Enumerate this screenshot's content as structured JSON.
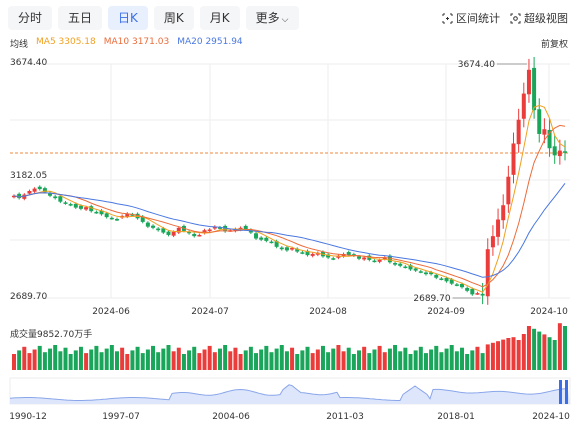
{
  "tabs": [
    "分时",
    "五日",
    "日K",
    "周K",
    "月K",
    "更多"
  ],
  "active_tab": 2,
  "tools": {
    "range_stats": "区间统计",
    "super_view": "超级视图"
  },
  "legend": {
    "label": "均线",
    "ma5": "MA5 3305.18",
    "ma10": "MA10 3171.03",
    "ma20": "MA20 2951.94"
  },
  "restore_label": "前复权",
  "price_axis": {
    "high": "3674.40",
    "mid": "3182.05",
    "low": "2689.70"
  },
  "annotations": {
    "max": "3674.40",
    "min": "2689.70"
  },
  "month_labels": [
    "2024-06",
    "2024-07",
    "2024-08",
    "2024-09",
    "2024-10"
  ],
  "volume_title": "成交量9852.70万手",
  "overview_labels": [
    "1990-12",
    "1997-07",
    "2004-06",
    "2011-03",
    "2018-01",
    "2024-10"
  ],
  "colors": {
    "up": "#eb3c3c",
    "down": "#1aa65a",
    "ma5": "#f0a020",
    "ma10": "#ec6b3a",
    "ma20": "#4a78e0",
    "ref": "#f08a3c"
  },
  "chart_data": {
    "type": "candlestick",
    "x_range": [
      "2024-05-16",
      "2024-10-10"
    ],
    "ylim": [
      2689.7,
      3674.4
    ],
    "reference_line": 3300,
    "ma": {
      "MA5": 3305.18,
      "MA10": 3171.03,
      "MA20": 2951.94
    },
    "max": 3674.4,
    "min": 2689.7,
    "volume_unit": "万手",
    "series_close": [
      3120,
      3110,
      3125,
      3140,
      3150,
      3148,
      3135,
      3120,
      3110,
      3095,
      3088,
      3082,
      3070,
      3065,
      3072,
      3055,
      3050,
      3042,
      3030,
      3025,
      3020,
      3035,
      3045,
      3040,
      3025,
      3010,
      2990,
      2985,
      2975,
      2965,
      2955,
      2968,
      2985,
      2972,
      2962,
      2950,
      2955,
      2975,
      2978,
      2990,
      2985,
      2970,
      2975,
      2980,
      2985,
      2980,
      2965,
      2940,
      2935,
      2930,
      2925,
      2905,
      2895,
      2890,
      2900,
      2885,
      2880,
      2870,
      2875,
      2880,
      2865,
      2860,
      2855,
      2868,
      2875,
      2870,
      2868,
      2855,
      2860,
      2850,
      2845,
      2850,
      2860,
      2840,
      2830,
      2825,
      2820,
      2810,
      2805,
      2800,
      2790,
      2790,
      2775,
      2770,
      2760,
      2750,
      2745,
      2735,
      2720,
      2705,
      2710,
      2700,
      2895,
      2950,
      3020,
      3080,
      3200,
      3340,
      3440,
      3550,
      3650,
      3480,
      3380,
      3400,
      3320,
      3290,
      3310,
      3305
    ]
  }
}
